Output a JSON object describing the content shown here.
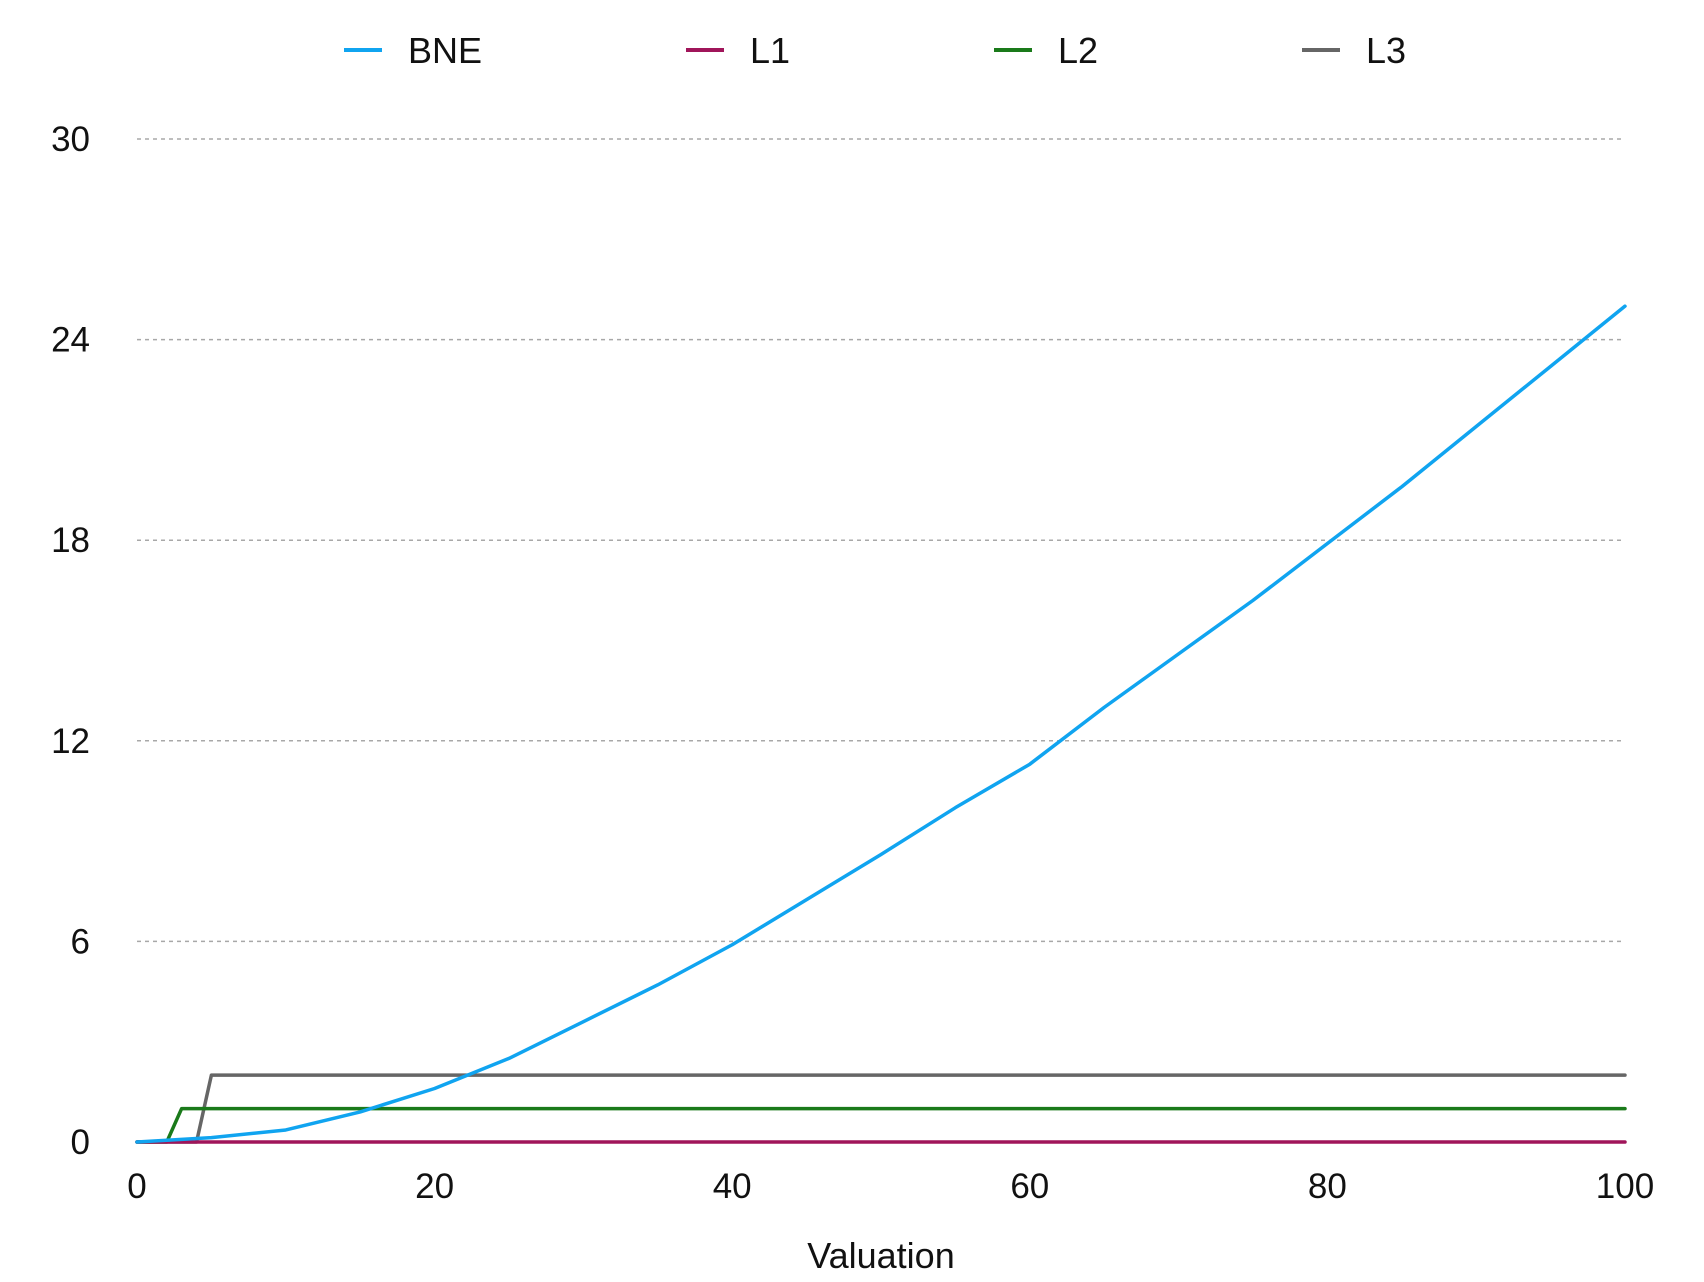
{
  "chart_data": {
    "type": "line",
    "title": "",
    "xlabel": "Valuation",
    "ylabel": "",
    "xlim": [
      0,
      100
    ],
    "ylim": [
      0,
      30
    ],
    "x_ticks": [
      0,
      20,
      40,
      60,
      80,
      100
    ],
    "y_ticks": [
      0,
      6,
      12,
      18,
      24,
      30
    ],
    "grid": "horizontal dashed",
    "legend_position": "top",
    "series": [
      {
        "name": "BNE",
        "color": "#10a4f0",
        "x": [
          0,
          5,
          10,
          15,
          20,
          25,
          30,
          35,
          40,
          45,
          50,
          55,
          60,
          65,
          70,
          75,
          80,
          85,
          90,
          95,
          100
        ],
        "y": [
          0,
          0.13,
          0.36,
          0.9,
          1.6,
          2.5,
          3.6,
          4.7,
          5.9,
          7.25,
          8.6,
          10.0,
          11.3,
          13.0,
          14.6,
          16.2,
          17.9,
          19.6,
          21.4,
          23.2,
          25.0
        ]
      },
      {
        "name": "L1",
        "color": "#a0155a",
        "x": [
          0,
          100
        ],
        "y": [
          0,
          0
        ]
      },
      {
        "name": "L2",
        "color": "#1a7a1a",
        "x": [
          0,
          2,
          3,
          100
        ],
        "y": [
          0,
          0,
          1,
          1
        ]
      },
      {
        "name": "L3",
        "color": "#666666",
        "x": [
          0,
          4,
          5,
          100
        ],
        "y": [
          0,
          0,
          2,
          2
        ]
      }
    ]
  }
}
